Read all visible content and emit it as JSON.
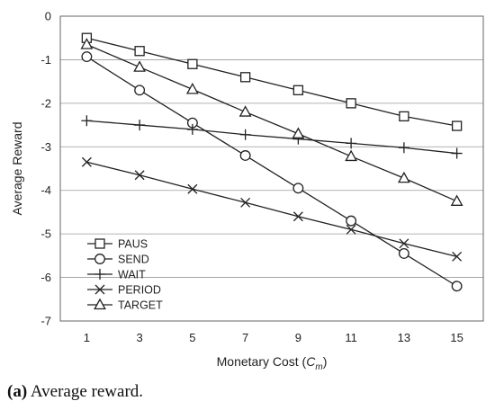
{
  "chart_data": {
    "type": "line",
    "xlabel": "Monetary Cost (",
    "xlabel_var": "C",
    "xlabel_sub": "m",
    "xlabel_close": ")",
    "ylabel": "Average Reward",
    "xlim": [
      0,
      16
    ],
    "ylim": [
      -7,
      0
    ],
    "x": [
      1,
      3,
      5,
      7,
      9,
      11,
      13,
      15
    ],
    "yticks": [
      0,
      -1,
      -2,
      -3,
      -4,
      -5,
      -6,
      -7
    ],
    "grid": "horizontal",
    "legend_position": "bottom-left",
    "series": [
      {
        "name": "PAUS",
        "marker": "square",
        "values": [
          -0.5,
          -0.8,
          -1.1,
          -1.4,
          -1.7,
          -2.0,
          -2.3,
          -2.52
        ]
      },
      {
        "name": "SEND",
        "marker": "circle",
        "values": [
          -0.93,
          -1.7,
          -2.45,
          -3.2,
          -3.95,
          -4.7,
          -5.45,
          -6.2
        ]
      },
      {
        "name": "WAIT",
        "marker": "plus",
        "values": [
          -2.4,
          -2.5,
          -2.6,
          -2.72,
          -2.82,
          -2.92,
          -3.02,
          -3.15
        ]
      },
      {
        "name": "PERIOD",
        "marker": "x",
        "values": [
          -3.35,
          -3.65,
          -3.97,
          -4.28,
          -4.6,
          -4.9,
          -5.22,
          -5.52
        ]
      },
      {
        "name": "TARGET",
        "marker": "triangle",
        "values": [
          -0.65,
          -1.17,
          -1.68,
          -2.2,
          -2.7,
          -3.22,
          -3.72,
          -4.25
        ]
      }
    ]
  },
  "caption": {
    "label": "(a)",
    "text": "Average reward."
  }
}
